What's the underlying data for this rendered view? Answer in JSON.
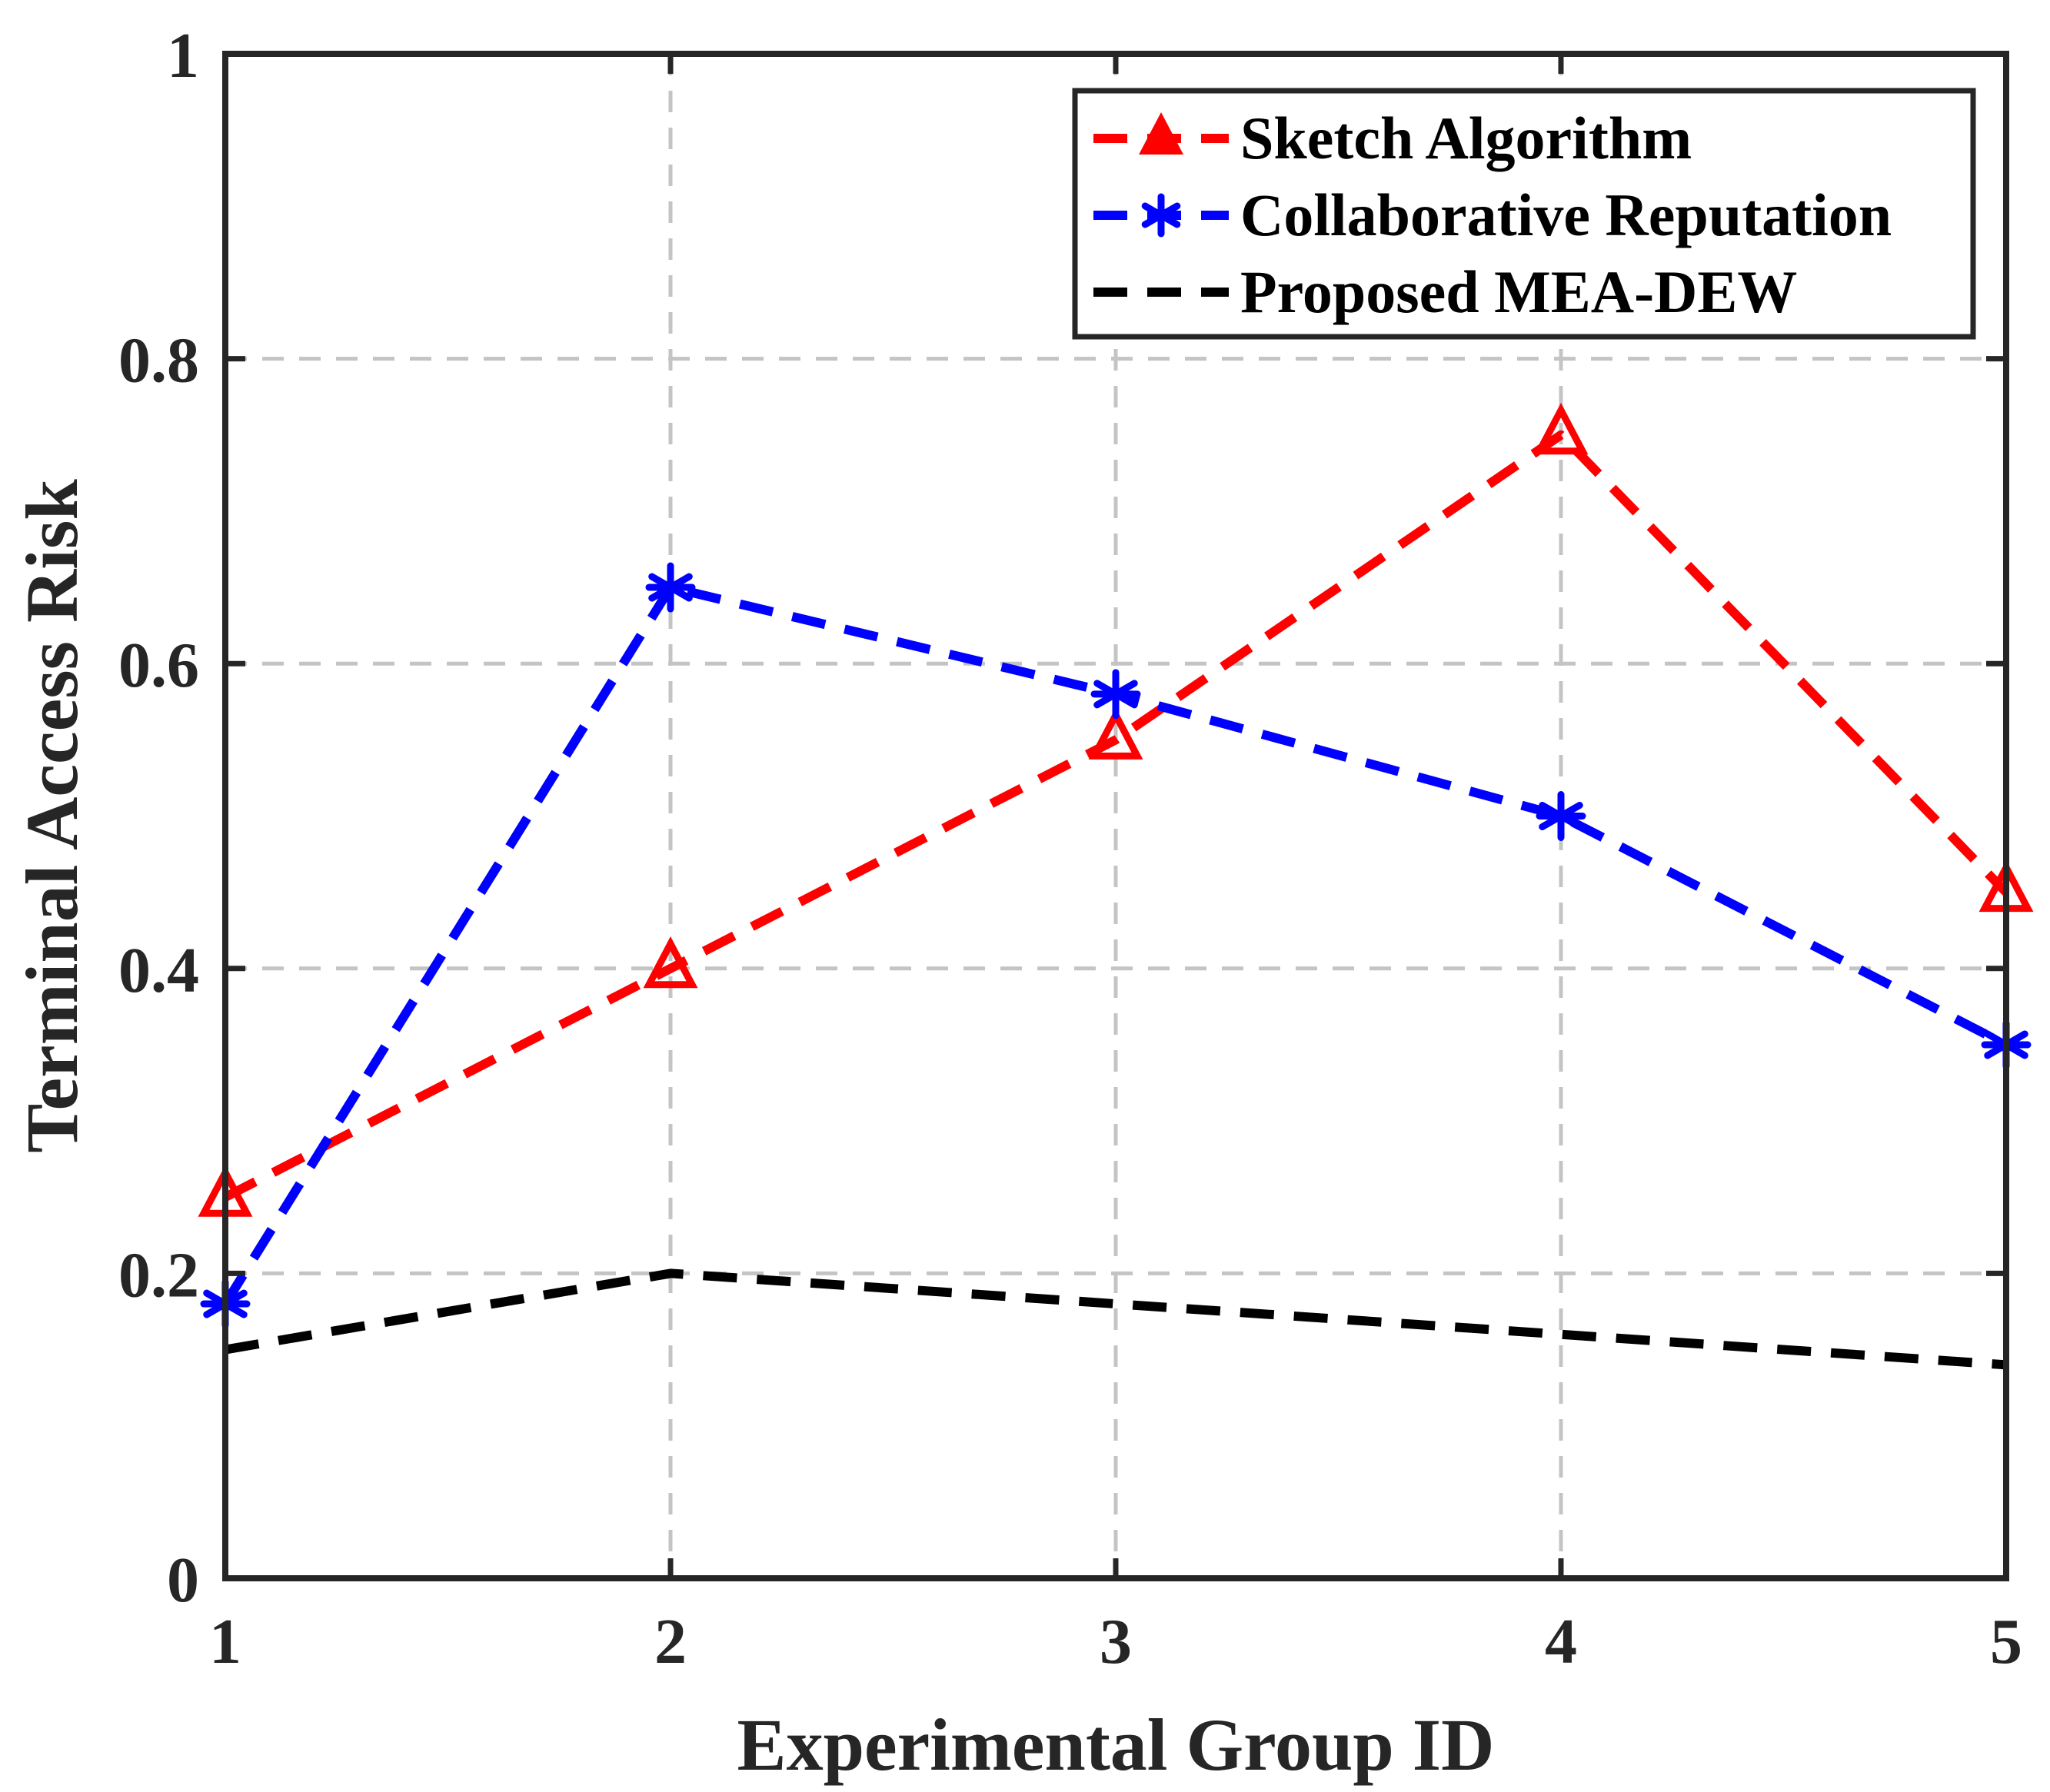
{
  "chart_data": {
    "type": "line",
    "title": "",
    "xlabel": "Experimental Group ID",
    "ylabel": "Terminal Access Risk",
    "x": [
      1,
      2,
      3,
      4,
      5
    ],
    "xlim": [
      1,
      5
    ],
    "ylim": [
      0,
      1
    ],
    "xticks": [
      1,
      2,
      3,
      4,
      5
    ],
    "yticks": [
      0,
      0.2,
      0.4,
      0.6,
      0.8,
      1
    ],
    "xtick_labels": [
      "1",
      "2",
      "3",
      "4",
      "5"
    ],
    "ytick_labels": [
      "0",
      "0.2",
      "0.4",
      "0.6",
      "0.8",
      "1"
    ],
    "grid": true,
    "legend_position": "top-right",
    "series": [
      {
        "name": "Sketch Algorithm",
        "values": [
          0.25,
          0.4,
          0.55,
          0.75,
          0.45
        ],
        "color": "#ff0000",
        "marker": "triangle",
        "line_style": "dashed"
      },
      {
        "name": "Collaborative Reputation",
        "values": [
          0.18,
          0.65,
          0.58,
          0.5,
          0.35
        ],
        "color": "#0000ff",
        "marker": "asterisk",
        "line_style": "dashed"
      },
      {
        "name": "Proposed MEA-DEW",
        "values": [
          0.15,
          0.2,
          0.18,
          0.16,
          0.14
        ],
        "color": "#000000",
        "marker": "none",
        "line_style": "dashed"
      }
    ]
  }
}
